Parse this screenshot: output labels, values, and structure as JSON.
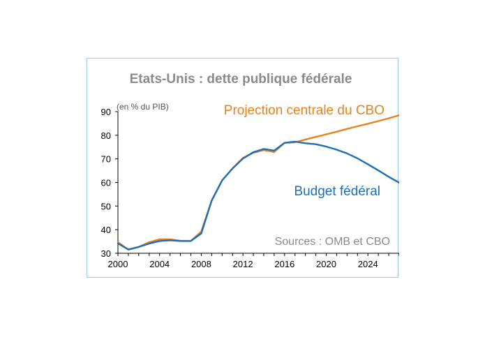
{
  "chart_data": {
    "type": "line",
    "title": "Etats-Unis : dette publique fédérale",
    "unit_label": "(en % du PIB)",
    "xlabel": "",
    "ylabel": "",
    "xlim": [
      2000,
      2027
    ],
    "ylim": [
      30,
      90
    ],
    "x_ticks": [
      2000,
      2004,
      2008,
      2012,
      2016,
      2020,
      2024
    ],
    "y_ticks": [
      30,
      40,
      50,
      60,
      70,
      80,
      90
    ],
    "grid": false,
    "colors": {
      "projection": "#e8821e",
      "budget": "#1f6eb4",
      "title": "#8a8a8a",
      "frame": "#9ccbe6"
    },
    "series": [
      {
        "name": "Projection centrale du CBO",
        "color": "#e8821e",
        "x": [
          2000,
          2001,
          2002,
          2003,
          2004,
          2005,
          2006,
          2007,
          2008,
          2009,
          2010,
          2011,
          2012,
          2013,
          2014,
          2015,
          2016,
          2017,
          2018,
          2019,
          2020,
          2021,
          2022,
          2023,
          2024,
          2025,
          2026,
          2027
        ],
        "values": [
          34.7,
          31.5,
          32.7,
          34.7,
          35.9,
          35.9,
          35.3,
          35.2,
          39.2,
          52.3,
          60.9,
          65.9,
          70.4,
          72.6,
          73.7,
          72.9,
          76.8,
          77.0,
          78.2,
          79.3,
          80.4,
          81.5,
          82.7,
          83.8,
          84.9,
          86.0,
          87.2,
          88.5
        ]
      },
      {
        "name": "Budget fédéral",
        "color": "#1f6eb4",
        "x": [
          2000,
          2001,
          2002,
          2003,
          2004,
          2005,
          2006,
          2007,
          2008,
          2009,
          2010,
          2011,
          2012,
          2013,
          2014,
          2015,
          2016,
          2017,
          2018,
          2019,
          2020,
          2021,
          2022,
          2023,
          2024,
          2025,
          2026,
          2027
        ],
        "values": [
          34.2,
          31.6,
          32.7,
          34.1,
          35.2,
          35.5,
          35.2,
          35.2,
          38.4,
          52.3,
          60.9,
          65.9,
          70.1,
          72.8,
          74.2,
          73.5,
          76.8,
          77.3,
          76.6,
          76.2,
          75.2,
          73.9,
          72.3,
          70.2,
          67.7,
          65.1,
          62.4,
          59.9
        ]
      }
    ],
    "annotations": {
      "projection_label": "Projection centrale du CBO",
      "budget_label": "Budget fédéral",
      "source": "Sources : OMB et CBO"
    }
  }
}
